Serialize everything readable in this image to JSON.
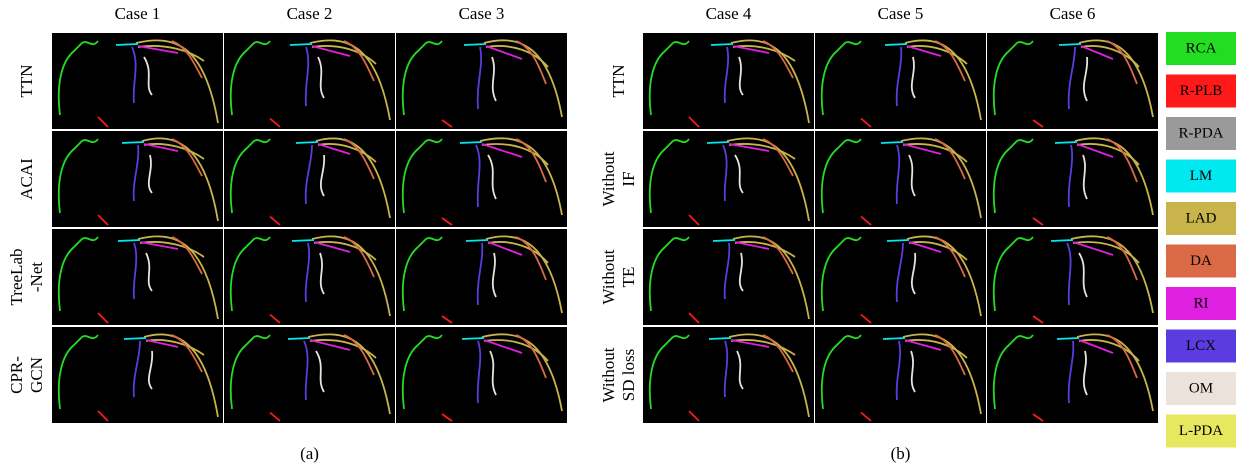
{
  "panels": [
    {
      "caption": "(a)",
      "columns": [
        "Case 1",
        "Case 2",
        "Case 3"
      ],
      "rows": [
        [
          "TTN"
        ],
        [
          "ACAI"
        ],
        [
          "TreeLab",
          "-Net"
        ],
        [
          "CPR-",
          "GCN"
        ]
      ]
    },
    {
      "caption": "(b)",
      "columns": [
        "Case 4",
        "Case 5",
        "Case 6"
      ],
      "rows": [
        [
          "TTN"
        ],
        [
          "Without",
          "IF"
        ],
        [
          "Without",
          "TE"
        ],
        [
          "Without",
          "SD loss"
        ]
      ]
    }
  ],
  "legend": [
    {
      "label": "RCA",
      "color": "#22dd22"
    },
    {
      "label": "R-PLB",
      "color": "#ff1a1a"
    },
    {
      "label": "R-PDA",
      "color": "#9a9a9a"
    },
    {
      "label": "LM",
      "color": "#00e8f0"
    },
    {
      "label": "LAD",
      "color": "#c8b44a"
    },
    {
      "label": "DA",
      "color": "#d96a45"
    },
    {
      "label": "RI",
      "color": "#e020e0"
    },
    {
      "label": "LCX",
      "color": "#5a3ce0"
    },
    {
      "label": "OM",
      "color": "#ece2dc"
    },
    {
      "label": "L-PDA",
      "color": "#e8e860"
    }
  ]
}
